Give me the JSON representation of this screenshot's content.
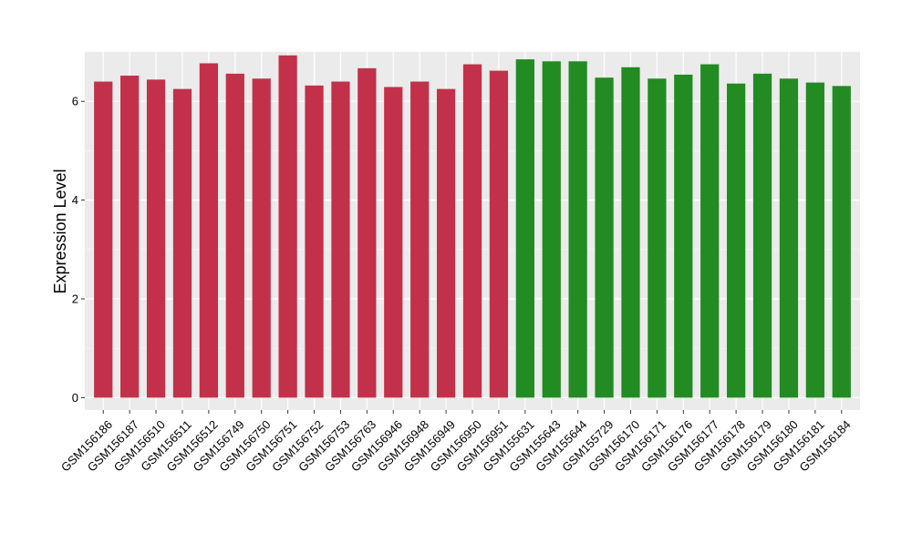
{
  "chart_data": {
    "type": "bar",
    "title": "",
    "xlabel": "",
    "ylabel": "Expression Level",
    "ylim": [
      -0.25,
      7.0
    ],
    "yticks": [
      0,
      2,
      4,
      6
    ],
    "grid": true,
    "legend": "none",
    "categories": [
      "GSM156186",
      "GSM156187",
      "GSM156510",
      "GSM156511",
      "GSM156512",
      "GSM156749",
      "GSM156750",
      "GSM156751",
      "GSM156752",
      "GSM156753",
      "GSM156763",
      "GSM156946",
      "GSM156948",
      "GSM156949",
      "GSM156950",
      "GSM156951",
      "GSM155631",
      "GSM155643",
      "GSM155644",
      "GSM155729",
      "GSM156170",
      "GSM156171",
      "GSM156176",
      "GSM156177",
      "GSM156178",
      "GSM156179",
      "GSM156180",
      "GSM156181",
      "GSM156184"
    ],
    "values": [
      6.4,
      6.52,
      6.44,
      6.25,
      6.77,
      6.56,
      6.46,
      6.93,
      6.32,
      6.4,
      6.67,
      6.29,
      6.4,
      6.25,
      6.75,
      6.62,
      6.85,
      6.81,
      6.81,
      6.48,
      6.69,
      6.46,
      6.54,
      6.75,
      6.36,
      6.56,
      6.46,
      6.38,
      6.31
    ],
    "group_colors": [
      "#c23149",
      "#228b22"
    ],
    "groups": [
      0,
      0,
      0,
      0,
      0,
      0,
      0,
      0,
      0,
      0,
      0,
      0,
      0,
      0,
      0,
      0,
      1,
      1,
      1,
      1,
      1,
      1,
      1,
      1,
      1,
      1,
      1,
      1,
      1
    ]
  },
  "style": {
    "panel_background": "#ebebeb",
    "grid_major": "#ffffff",
    "grid_minor": "#f5f5f5",
    "axis_text": "#000000"
  }
}
